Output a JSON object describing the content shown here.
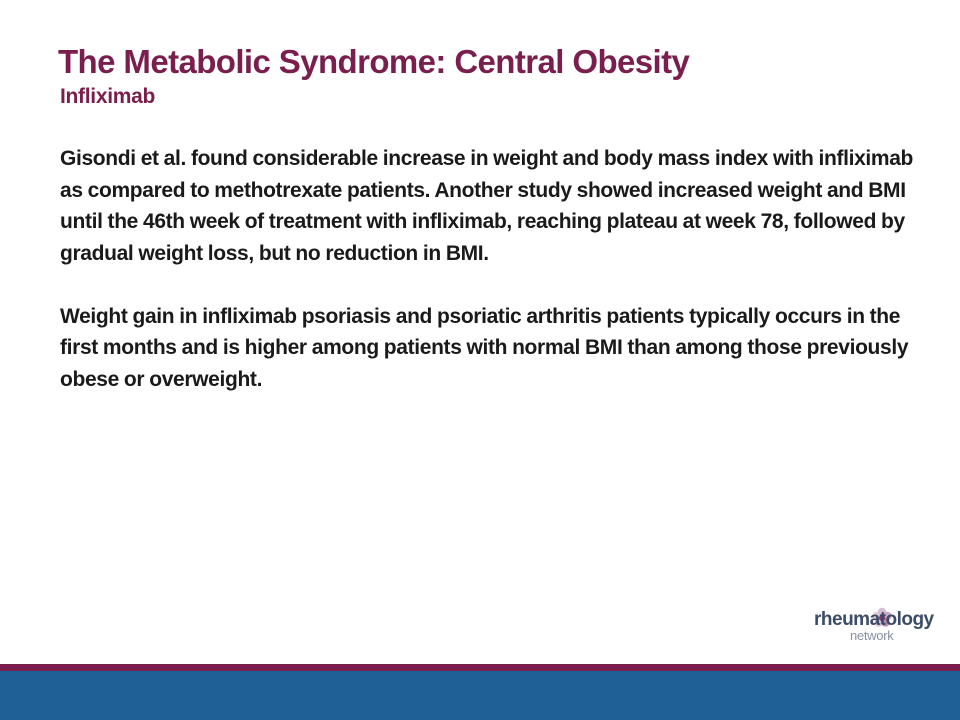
{
  "slide": {
    "title": "The Metabolic Syndrome:  Central Obesity",
    "subtitle": "Infliximab",
    "paragraphs": [
      "Gisondi et al. found considerable increase in weight and body mass index with infliximab as compared to methotrexate patients. Another study showed increased weight and BMI until the 46th week of treatment with infliximab, reaching plateau at week 78, followed by gradual weight loss,  but no reduction in BMI.",
      "Weight gain in infliximab psoriasis and psoriatic arthritis patients typically occurs in the first months and is higher among patients with normal BMI than among those previously obese or overweight."
    ]
  },
  "logo": {
    "word": "rheumatology",
    "sub": "network"
  },
  "colors": {
    "title": "#7a1f4d",
    "stripe": "#7a1f4d",
    "band": "#1f6196",
    "logo_text": "#3d4c66"
  }
}
